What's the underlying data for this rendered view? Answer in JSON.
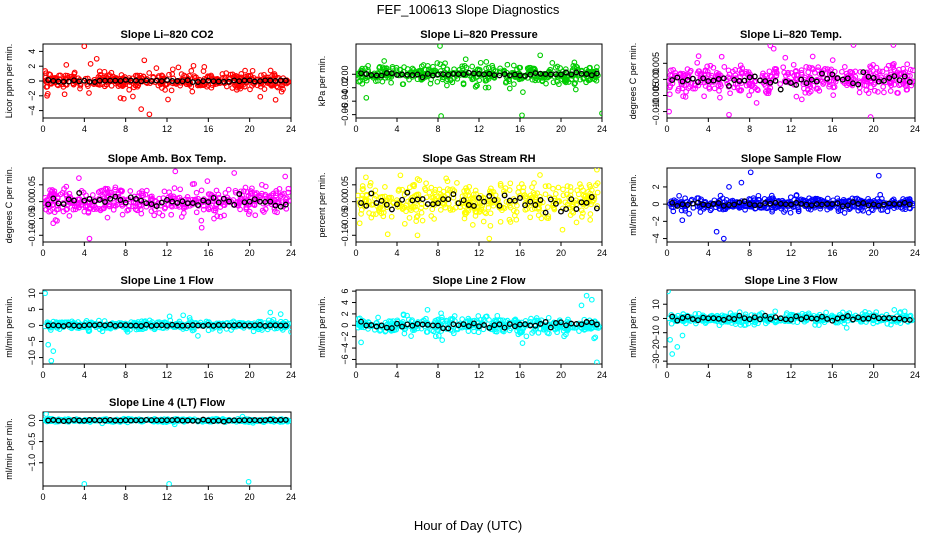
{
  "figure": {
    "title": "FEF_100613  Slope Diagnostics",
    "xlabel": "Hour of Day (UTC)"
  },
  "chart_data": [
    {
      "id": "co2",
      "type": "scatter",
      "title": "Slope Li–820 CO2",
      "ylabel": "Licor ppm per min.",
      "color": "#ff0000",
      "xlim": [
        0,
        24
      ],
      "ylim": [
        -5,
        5
      ],
      "xticks": [
        0,
        4,
        8,
        12,
        16,
        20,
        24
      ],
      "yticks": [
        -4,
        -2,
        0,
        2,
        4
      ],
      "ytick_labels": [
        "−4",
        "−2",
        "0",
        "2",
        "4"
      ],
      "scatter_spread": 0.9,
      "mean_spread": 0.15,
      "outliers": [
        [
          4,
          4.7
        ],
        [
          7.5,
          -2.3
        ],
        [
          8.7,
          -2.1
        ],
        [
          9.5,
          -3.8
        ],
        [
          10.3,
          -4.5
        ],
        [
          9.8,
          2.8
        ],
        [
          5.2,
          3
        ],
        [
          12.1,
          -2.5
        ],
        [
          0.4,
          -2
        ]
      ]
    },
    {
      "id": "pressure",
      "type": "scatter",
      "title": "Slope Li–820 Pressure",
      "ylabel": "kPa per min.",
      "color": "#00cc00",
      "xlim": [
        0,
        24
      ],
      "ylim": [
        -0.065,
        0.045
      ],
      "xticks": [
        0,
        4,
        8,
        12,
        16,
        20,
        24
      ],
      "yticks": [
        -0.06,
        -0.04,
        -0.02,
        0.0
      ],
      "ytick_labels": [
        "−0.06",
        "−0.04",
        "−0.02",
        "0.00"
      ],
      "scatter_spread": 0.012,
      "mean_spread": 0.003,
      "outliers": [
        [
          8.2,
          0.042
        ],
        [
          8.3,
          -0.062
        ],
        [
          16.2,
          -0.061
        ],
        [
          24,
          -0.058
        ],
        [
          1,
          -0.035
        ]
      ]
    },
    {
      "id": "temp",
      "type": "scatter",
      "title": "Slope Li–820 Temp.",
      "ylabel": "degrees C per min.",
      "color": "#ff00ff",
      "xlim": [
        0,
        24
      ],
      "ylim": [
        -0.012,
        0.011
      ],
      "xticks": [
        0,
        4,
        8,
        12,
        16,
        20,
        24
      ],
      "yticks": [
        -0.01,
        -0.005,
        0.0,
        0.005
      ],
      "ytick_labels": [
        "−0.010",
        "−0.005",
        "0.000",
        "0.005"
      ],
      "scatter_spread": 0.004,
      "mean_spread": 0.002,
      "outliers": [
        [
          10,
          0.0105
        ],
        [
          0.2,
          -0.01
        ],
        [
          6,
          -0.011
        ]
      ]
    },
    {
      "id": "ambbox",
      "type": "scatter",
      "title": "Slope Amb. Box Temp.",
      "ylabel": "degrees C per min.",
      "color": "#ff00ff",
      "xlim": [
        0,
        24
      ],
      "ylim": [
        -0.12,
        0.1
      ],
      "xticks": [
        0,
        4,
        8,
        12,
        16,
        20,
        24
      ],
      "yticks": [
        -0.1,
        -0.05,
        0.0,
        0.05
      ],
      "ytick_labels": [
        "−0.10",
        "−0.05",
        "0.00",
        "0.05"
      ],
      "scatter_spread": 0.035,
      "mean_spread": 0.02,
      "outliers": [
        [
          4.5,
          -0.11
        ],
        [
          12.8,
          0.09
        ],
        [
          18.5,
          0.085
        ]
      ]
    },
    {
      "id": "rh",
      "type": "scatter",
      "title": "Slope Gas Stream RH",
      "ylabel": "percent per min.",
      "color": "#ffff00",
      "xlim": [
        0,
        24
      ],
      "ylim": [
        -0.12,
        0.1
      ],
      "xticks": [
        0,
        4,
        8,
        12,
        16,
        20,
        24
      ],
      "yticks": [
        -0.1,
        -0.05,
        0.0,
        0.05
      ],
      "ytick_labels": [
        "−0.10",
        "−0.05",
        "0.00",
        "0.05"
      ],
      "scatter_spread": 0.045,
      "mean_spread": 0.025,
      "outliers": [
        [
          23.5,
          0.095
        ],
        [
          13,
          -0.11
        ],
        [
          6,
          -0.1
        ]
      ]
    },
    {
      "id": "sampleflow",
      "type": "scatter",
      "title": "Slope Sample Flow",
      "ylabel": "ml/min per min.",
      "color": "#0000ff",
      "xlim": [
        0,
        24
      ],
      "ylim": [
        -4.4,
        4.2
      ],
      "xticks": [
        0,
        4,
        8,
        12,
        16,
        20,
        24
      ],
      "yticks": [
        -4,
        -2,
        0,
        2
      ],
      "ytick_labels": [
        "−4",
        "−2",
        "0",
        "2"
      ],
      "scatter_spread": 0.7,
      "mean_spread": 0.25,
      "outliers": [
        [
          5.5,
          -4
        ],
        [
          8.1,
          3.7
        ],
        [
          20.5,
          3.3
        ],
        [
          7.2,
          2.5
        ],
        [
          4.8,
          -3.2
        ],
        [
          6,
          2
        ]
      ]
    },
    {
      "id": "line1",
      "type": "scatter",
      "title": "Slope Line 1 Flow",
      "ylabel": "ml/min per min.",
      "color": "#00ffff",
      "xlim": [
        0,
        24
      ],
      "ylim": [
        -12,
        11
      ],
      "xticks": [
        0,
        4,
        8,
        12,
        16,
        20,
        24
      ],
      "yticks": [
        -10,
        -5,
        0,
        5,
        10
      ],
      "ytick_labels": [
        "−10",
        "−5",
        "0",
        "5",
        "10"
      ],
      "scatter_spread": 1.2,
      "mean_spread": 0.2,
      "outliers": [
        [
          0.2,
          10
        ],
        [
          0.8,
          -11
        ],
        [
          0.5,
          -6
        ],
        [
          1,
          -8
        ],
        [
          22,
          4
        ],
        [
          23,
          3.5
        ],
        [
          24,
          -2
        ]
      ]
    },
    {
      "id": "line2",
      "type": "scatter",
      "title": "Slope Line 2 Flow",
      "ylabel": "ml/min per min.",
      "color": "#00ffff",
      "xlim": [
        0,
        24
      ],
      "ylim": [
        -6.8,
        6.2
      ],
      "xticks": [
        0,
        4,
        8,
        12,
        16,
        20,
        24
      ],
      "yticks": [
        -6,
        -4,
        -2,
        0,
        2,
        4,
        6
      ],
      "ytick_labels": [
        "−6",
        "−4",
        "−2",
        "0",
        "2",
        "4",
        "6"
      ],
      "scatter_spread": 1.2,
      "mean_spread": 0.6,
      "outliers": [
        [
          23.5,
          -6.5
        ],
        [
          22.5,
          5.2
        ],
        [
          23,
          4.5
        ],
        [
          0.5,
          -3
        ],
        [
          22,
          3.5
        ]
      ]
    },
    {
      "id": "line3",
      "type": "scatter",
      "title": "Slope Line 3 Flow",
      "ylabel": "ml/min per min.",
      "color": "#00ffff",
      "xlim": [
        0,
        24
      ],
      "ylim": [
        -32,
        20
      ],
      "xticks": [
        0,
        4,
        8,
        12,
        16,
        20,
        24
      ],
      "yticks": [
        -30,
        -20,
        -10,
        0,
        10
      ],
      "ytick_labels": [
        "−30",
        "−20",
        "−10",
        "0",
        "10"
      ],
      "scatter_spread": 3,
      "mean_spread": 1.5,
      "outliers": [
        [
          0.1,
          19
        ],
        [
          0.5,
          -25
        ],
        [
          1,
          -20
        ],
        [
          0.3,
          -15
        ],
        [
          1.5,
          -12
        ],
        [
          22,
          6
        ],
        [
          23,
          5
        ]
      ]
    },
    {
      "id": "line4",
      "type": "scatter",
      "title": "Slope Line 4 (LT) Flow",
      "ylabel": "ml/min per min.",
      "color": "#00ffff",
      "xlim": [
        0,
        24
      ],
      "ylim": [
        -1.55,
        0.2
      ],
      "xticks": [
        0,
        4,
        8,
        12,
        16,
        20,
        24
      ],
      "yticks": [
        -1.0,
        -0.5,
        0.0
      ],
      "ytick_labels": [
        "−1.0",
        "−0.5",
        "0.0"
      ],
      "scatter_spread": 0.03,
      "mean_spread": 0.02,
      "outliers": [
        [
          4,
          -1.5
        ],
        [
          12.2,
          -1.5
        ],
        [
          19.9,
          -1.45
        ],
        [
          0.3,
          0.15
        ]
      ]
    }
  ]
}
